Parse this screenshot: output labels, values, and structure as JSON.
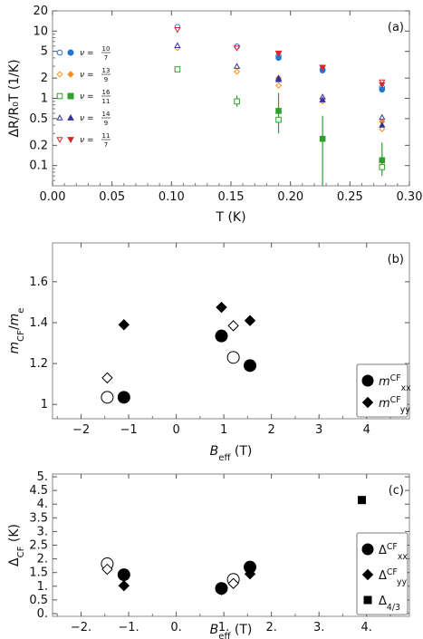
{
  "chart_data": [
    {
      "type": "scatter",
      "panel_label": "(a)",
      "xlabel": "T (K)",
      "ylabel": "ΔR/R₀T (1/K)",
      "xlim": [
        0.0,
        0.3
      ],
      "ylim": [
        0.05,
        20
      ],
      "yscale": "log",
      "xticks": [
        "0.00",
        "0.05",
        "0.10",
        "0.15",
        "0.20",
        "0.25",
        "0.30"
      ],
      "yticks": [
        "0.1",
        "0.2",
        "0.5",
        "1",
        "2",
        "5",
        "10",
        "20"
      ],
      "legend_placement": "left",
      "series": [
        {
          "name": "ν = 10/7",
          "color": "#1f77d4",
          "open": [
            [
              0.105,
              11.5
            ],
            [
              0.155,
              5.9
            ],
            [
              0.19,
              4.3
            ],
            [
              0.227,
              2.7
            ],
            [
              0.277,
              1.45
            ]
          ],
          "filled": [
            [
              0.19,
              4.0
            ],
            [
              0.227,
              2.6
            ],
            [
              0.277,
              1.35
            ]
          ]
        },
        {
          "name": "ν = 13/9",
          "color": "#ff8c1a",
          "open": [
            [
              0.105,
              5.6
            ],
            [
              0.155,
              2.5
            ],
            [
              0.19,
              1.55
            ],
            [
              0.227,
              0.9
            ],
            [
              0.277,
              0.35
            ]
          ],
          "filled": [
            [
              0.19,
              2.0
            ],
            [
              0.227,
              1.0
            ],
            [
              0.277,
              0.45
            ]
          ]
        },
        {
          "name": "ν = 16/11",
          "color": "#2ca02c",
          "open": [
            [
              0.105,
              2.7
            ],
            [
              0.155,
              0.9
            ],
            [
              0.19,
              0.48
            ],
            [
              0.277,
              0.095
            ]
          ],
          "filled": [
            [
              0.19,
              0.65
            ],
            [
              0.227,
              0.25
            ],
            [
              0.277,
              0.12
            ]
          ]
        },
        {
          "name": "ν = 14/9",
          "color": "#333399",
          "open": [
            [
              0.105,
              6.1
            ],
            [
              0.155,
              3.0
            ],
            [
              0.19,
              2.0
            ],
            [
              0.227,
              1.05
            ],
            [
              0.277,
              0.52
            ]
          ],
          "filled": [
            [
              0.19,
              1.9
            ],
            [
              0.227,
              0.95
            ],
            [
              0.277,
              0.4
            ]
          ]
        },
        {
          "name": "ν = 11/7",
          "color": "#d62728",
          "open": [
            [
              0.105,
              10.5
            ],
            [
              0.155,
              5.6
            ],
            [
              0.19,
              4.7
            ],
            [
              0.227,
              2.9
            ],
            [
              0.277,
              1.75
            ]
          ],
          "filled": [
            [
              0.19,
              4.6
            ],
            [
              0.227,
              2.85
            ],
            [
              0.277,
              1.6
            ]
          ]
        }
      ]
    },
    {
      "type": "scatter",
      "panel_label": "(b)",
      "xlabel": "B_eff (T)",
      "ylabel": "m_CF/m_e",
      "xlim": [
        -2.6,
        4.9
      ],
      "ylim": [
        0.93,
        1.79
      ],
      "xticks": [
        "−2",
        "−1",
        "0",
        "1",
        "2",
        "3",
        "4"
      ],
      "yticks": [
        "1",
        "1.2",
        "1.4",
        "1.6"
      ],
      "legend_placement": "bottom-right",
      "series": [
        {
          "name": "m_xx^CF",
          "marker": "circle",
          "filled": [
            [
              -1.1,
              1.035
            ],
            [
              0.95,
              1.335
            ],
            [
              1.55,
              1.19
            ]
          ],
          "open": [
            [
              -1.45,
              1.035
            ],
            [
              1.2,
              1.23
            ]
          ]
        },
        {
          "name": "m_yy^CF",
          "marker": "diamond",
          "filled": [
            [
              -1.1,
              1.39
            ],
            [
              0.95,
              1.475
            ],
            [
              1.55,
              1.41
            ]
          ],
          "open": [
            [
              -1.45,
              1.13
            ],
            [
              1.2,
              1.385
            ]
          ]
        }
      ]
    },
    {
      "type": "scatter",
      "panel_label": "(c)",
      "xlabel": "B_eff (T)",
      "ylabel": "Δ_CF (K)",
      "xlim": [
        -2.6,
        4.9
      ],
      "ylim": [
        -0.1,
        5.1
      ],
      "xticks": [
        "−2.",
        "−1.",
        "0.",
        "1.",
        "2.",
        "3.",
        "4."
      ],
      "yticks": [
        "0.",
        "0.5",
        "1.",
        "1.5",
        "2.",
        "2.5",
        "3.",
        "3.5",
        "4.",
        "4.5",
        "5."
      ],
      "legend_placement": "bottom-right",
      "series": [
        {
          "name": "Δ_xx^CF",
          "marker": "circle",
          "filled": [
            [
              -1.1,
              1.42
            ],
            [
              0.95,
              0.92
            ],
            [
              1.55,
              1.7
            ]
          ],
          "open": [
            [
              -1.45,
              1.82
            ],
            [
              1.2,
              1.25
            ]
          ]
        },
        {
          "name": "Δ_yy^CF",
          "marker": "diamond",
          "filled": [
            [
              -1.1,
              1.02
            ],
            [
              0.95,
              0.87
            ],
            [
              1.55,
              1.45
            ]
          ],
          "open": [
            [
              -1.45,
              1.62
            ],
            [
              1.2,
              1.1
            ]
          ]
        },
        {
          "name": "Δ_4/3",
          "marker": "square",
          "filled": [
            [
              3.9,
              4.15
            ]
          ],
          "open": []
        }
      ]
    }
  ]
}
